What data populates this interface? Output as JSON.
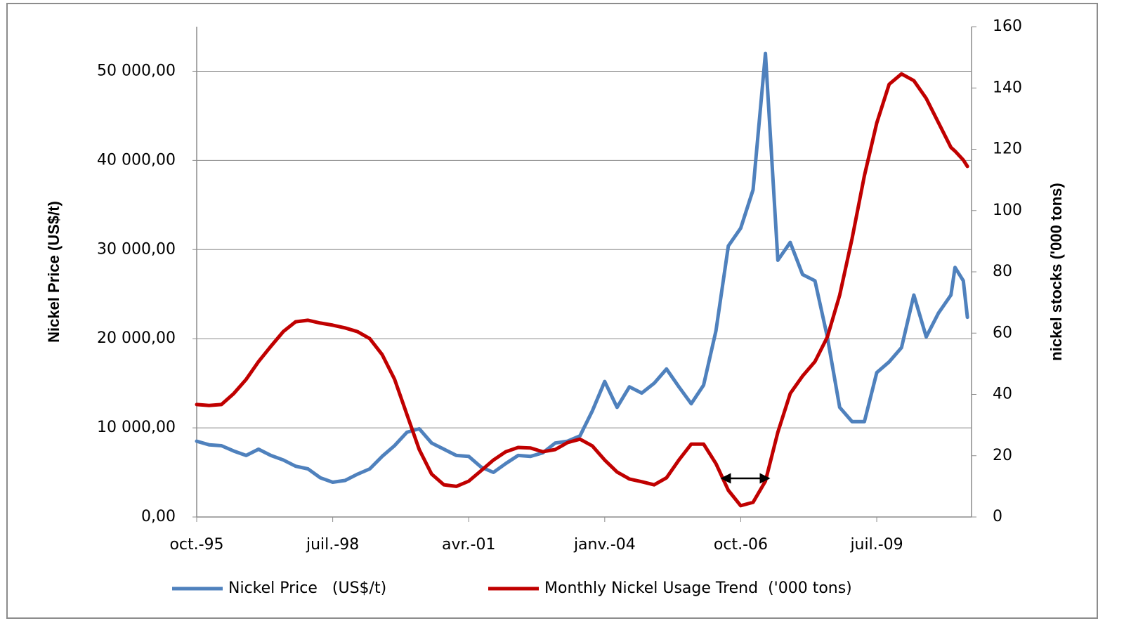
{
  "chart_data": {
    "type": "line",
    "x": [
      "1995-10",
      "1996-01",
      "1996-04",
      "1996-07",
      "1996-10",
      "1997-01",
      "1997-04",
      "1997-07",
      "1997-10",
      "1998-01",
      "1998-04",
      "1998-07",
      "1998-10",
      "1999-01",
      "1999-04",
      "1999-07",
      "1999-10",
      "2000-01",
      "2000-04",
      "2000-07",
      "2000-10",
      "2001-01",
      "2001-04",
      "2001-07",
      "2001-10",
      "2002-01",
      "2002-04",
      "2002-07",
      "2002-10",
      "2003-01",
      "2003-04",
      "2003-07",
      "2003-10",
      "2004-01",
      "2004-04",
      "2004-07",
      "2004-10",
      "2005-01",
      "2005-04",
      "2005-07",
      "2005-10",
      "2006-01",
      "2006-04",
      "2006-07",
      "2006-10",
      "2007-01",
      "2007-04",
      "2007-07",
      "2007-10",
      "2008-01",
      "2008-04",
      "2008-07",
      "2008-10",
      "2009-01",
      "2009-04",
      "2009-07",
      "2009-10",
      "2010-01",
      "2010-04",
      "2010-07",
      "2010-10",
      "2011-01",
      "2011-02",
      "2011-04",
      "2011-05"
    ],
    "series": [
      {
        "name": "Nickel Price   (US$/t)",
        "color": "#4f81bd",
        "axis": "y",
        "values": [
          8500,
          8100,
          8000,
          7400,
          6900,
          7600,
          6900,
          6400,
          5700,
          5400,
          4400,
          3900,
          4100,
          4800,
          5400,
          6800,
          8000,
          9500,
          9900,
          8300,
          7600,
          6900,
          6800,
          5600,
          5000,
          6000,
          6900,
          6800,
          7200,
          8300,
          8500,
          9100,
          11900,
          15200,
          12300,
          14600,
          13900,
          15000,
          16600,
          14600,
          12700,
          14800,
          20900,
          30400,
          32400,
          36700,
          52000,
          28800,
          30800,
          27200,
          26500,
          20200,
          12300,
          10700,
          10700,
          16200,
          17400,
          19000,
          24900,
          20200,
          22900,
          24900,
          28000,
          26500,
          22400
        ]
      },
      {
        "name": "Monthly Nickel Usage Trend  ('000 tons)",
        "color": "#c00000",
        "axis": "y2",
        "values": [
          36.7,
          36.4,
          36.7,
          40.3,
          44.9,
          50.7,
          55.7,
          60.5,
          63.7,
          64.2,
          63.3,
          62.6,
          61.7,
          60.5,
          58.2,
          53,
          45,
          33.5,
          22,
          14,
          10.5,
          10,
          11.7,
          15.1,
          18.6,
          21.3,
          22.7,
          22.5,
          21.3,
          22,
          24.3,
          25.4,
          23.2,
          18.6,
          14.7,
          12.4,
          11.5,
          10.5,
          12.8,
          18.6,
          23.8,
          23.8,
          17.4,
          8.7,
          3.7,
          4.8,
          11.7,
          27.7,
          40.3,
          46,
          50.7,
          58.7,
          72.4,
          90.8,
          111.4,
          128.6,
          141.2,
          144.6,
          142.4,
          136.6,
          128.6,
          120.6,
          119.4,
          116.5,
          114.4
        ]
      }
    ],
    "xlim": [
      "1995-10",
      "2011-06"
    ],
    "xticks": [
      {
        "value": "1995-10",
        "label": "oct.-95"
      },
      {
        "value": "1998-07",
        "label": "juil.-98"
      },
      {
        "value": "2001-04",
        "label": "avr.-01"
      },
      {
        "value": "2004-01",
        "label": "janv.-04"
      },
      {
        "value": "2006-10",
        "label": "oct.-06"
      },
      {
        "value": "2009-07",
        "label": "juil.-09"
      }
    ],
    "ylim": [
      0,
      55000
    ],
    "yticks": [
      {
        "value": 0,
        "label": "0,00"
      },
      {
        "value": 10000,
        "label": "10 000,00"
      },
      {
        "value": 20000,
        "label": "20 000,00"
      },
      {
        "value": 30000,
        "label": "30 000,00"
      },
      {
        "value": 40000,
        "label": "40 000,00"
      },
      {
        "value": 50000,
        "label": "50 000,00"
      }
    ],
    "y2lim": [
      0,
      160
    ],
    "y2ticks": [
      0,
      20,
      40,
      60,
      80,
      100,
      120,
      140,
      160
    ],
    "ylabel": "Nickel Price (US$/t)",
    "y2label": "nickel stocks ('000 tons)",
    "grid": true,
    "legend": "bottom"
  }
}
